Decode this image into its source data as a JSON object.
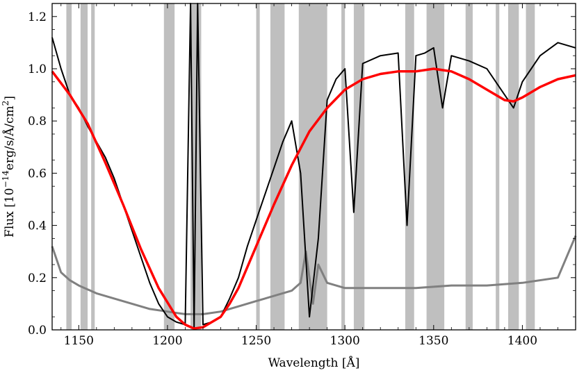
{
  "chart_data": {
    "type": "line",
    "xlabel": "Wavelength [Å]",
    "ylabel_parts": [
      "Flux [10",
      "−14",
      "erg/s/Å/cm",
      "2",
      "]"
    ],
    "xlim": [
      1135,
      1430
    ],
    "ylim": [
      0,
      1.25
    ],
    "x_ticks": [
      1150,
      1200,
      1250,
      1300,
      1350,
      1400
    ],
    "y_ticks": [
      0.0,
      0.2,
      0.4,
      0.6,
      0.8,
      1.0,
      1.2
    ],
    "x_tick_labels": [
      "1150",
      "1200",
      "1250",
      "1300",
      "1350",
      "1400"
    ],
    "y_tick_labels": [
      "0.0",
      "0.2",
      "0.4",
      "0.6",
      "0.8",
      "1.0",
      "1.2"
    ],
    "grid": false,
    "colors": {
      "flux": "#000000",
      "error": "#808080",
      "model": "#ff0000",
      "mask": "#a9a9a9"
    },
    "masked_regions": [
      [
        1143,
        1146
      ],
      [
        1151,
        1155
      ],
      [
        1157,
        1159
      ],
      [
        1198,
        1204
      ],
      [
        1213,
        1219
      ],
      [
        1250,
        1252
      ],
      [
        1258,
        1266
      ],
      [
        1274,
        1290
      ],
      [
        1298,
        1300
      ],
      [
        1305,
        1311
      ],
      [
        1334,
        1339
      ],
      [
        1346,
        1356
      ],
      [
        1368,
        1372
      ],
      [
        1385,
        1387
      ],
      [
        1392,
        1398
      ],
      [
        1402,
        1407
      ]
    ],
    "series": [
      {
        "role": "model",
        "x": [
          1135,
          1145,
          1155,
          1165,
          1175,
          1185,
          1195,
          1205,
          1210,
          1215,
          1220,
          1225,
          1230,
          1235,
          1240,
          1250,
          1260,
          1270,
          1280,
          1290,
          1300,
          1310,
          1320,
          1330,
          1340,
          1350,
          1360,
          1370,
          1380,
          1390,
          1395,
          1400,
          1410,
          1420,
          1430
        ],
        "y": [
          0.99,
          0.9,
          0.79,
          0.64,
          0.48,
          0.31,
          0.16,
          0.05,
          0.02,
          0.005,
          0.01,
          0.03,
          0.05,
          0.1,
          0.16,
          0.32,
          0.48,
          0.63,
          0.76,
          0.85,
          0.92,
          0.96,
          0.98,
          0.99,
          0.99,
          1.0,
          0.99,
          0.96,
          0.92,
          0.88,
          0.875,
          0.89,
          0.93,
          0.96,
          0.975
        ]
      },
      {
        "role": "flux",
        "x": [
          1135,
          1140,
          1145,
          1150,
          1155,
          1160,
          1165,
          1170,
          1175,
          1180,
          1185,
          1190,
          1195,
          1200,
          1205,
          1210,
          1213,
          1215,
          1217,
          1220,
          1225,
          1230,
          1235,
          1240,
          1245,
          1250,
          1255,
          1260,
          1265,
          1270,
          1275,
          1280,
          1285,
          1290,
          1295,
          1300,
          1305,
          1310,
          1320,
          1330,
          1335,
          1340,
          1345,
          1350,
          1355,
          1360,
          1370,
          1380,
          1390,
          1395,
          1400,
          1410,
          1420,
          1430
        ],
        "y": [
          1.12,
          1.0,
          0.9,
          0.85,
          0.78,
          0.72,
          0.66,
          0.58,
          0.48,
          0.38,
          0.28,
          0.18,
          0.1,
          0.05,
          0.03,
          0.02,
          1.25,
          0.01,
          1.25,
          0.02,
          0.03,
          0.05,
          0.12,
          0.2,
          0.32,
          0.42,
          0.52,
          0.62,
          0.72,
          0.8,
          0.6,
          0.05,
          0.35,
          0.88,
          0.96,
          1.0,
          0.45,
          1.02,
          1.05,
          1.06,
          0.4,
          1.05,
          1.06,
          1.08,
          0.85,
          1.05,
          1.03,
          1.0,
          0.9,
          0.85,
          0.95,
          1.05,
          1.1,
          1.08
        ]
      },
      {
        "role": "error",
        "x": [
          1135,
          1140,
          1145,
          1150,
          1160,
          1170,
          1180,
          1190,
          1200,
          1210,
          1220,
          1230,
          1240,
          1250,
          1260,
          1270,
          1275,
          1278,
          1282,
          1285,
          1290,
          1300,
          1320,
          1340,
          1360,
          1380,
          1400,
          1420,
          1430
        ],
        "y": [
          0.32,
          0.22,
          0.19,
          0.17,
          0.14,
          0.12,
          0.1,
          0.08,
          0.07,
          0.06,
          0.06,
          0.07,
          0.09,
          0.11,
          0.13,
          0.15,
          0.18,
          0.3,
          0.1,
          0.25,
          0.18,
          0.16,
          0.16,
          0.16,
          0.17,
          0.17,
          0.18,
          0.2,
          0.36
        ]
      }
    ]
  }
}
